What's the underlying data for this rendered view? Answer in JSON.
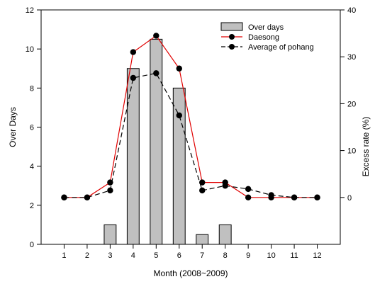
{
  "chart_data": {
    "type": "bar",
    "categories": [
      "1",
      "2",
      "3",
      "4",
      "5",
      "6",
      "7",
      "8",
      "9",
      "10",
      "11",
      "12"
    ],
    "xlabel": "Month (2008~2009)",
    "ylabel_left": "Over Days",
    "ylabel_right": "Excess rate (%)",
    "ylim_left": [
      0,
      12
    ],
    "ylim_right": [
      -10,
      40
    ],
    "yticks_left": [
      0,
      2,
      4,
      6,
      8,
      10,
      12
    ],
    "yticks_right": [
      0,
      10,
      20,
      30,
      40
    ],
    "grid": false,
    "legend_position": "top-right",
    "series": [
      {
        "name": "Over days",
        "type": "bar",
        "axis": "left",
        "color": "#c0c0c0",
        "values": [
          0,
          0,
          1,
          9,
          10.5,
          8,
          0.5,
          1,
          0,
          0,
          0,
          0
        ]
      },
      {
        "name": "Daesong",
        "type": "line",
        "axis": "right",
        "color": "#e00000",
        "dash": "solid",
        "values": [
          0,
          0,
          3.2,
          31,
          34.5,
          27.5,
          3.2,
          3.2,
          0,
          0,
          0,
          0
        ]
      },
      {
        "name": "Average of pohang",
        "type": "line",
        "axis": "right",
        "color": "#000000",
        "dash": "dashed",
        "values": [
          0,
          0,
          1.5,
          25.5,
          26.5,
          17.5,
          1.5,
          2.5,
          1.8,
          0.5,
          0,
          0
        ]
      }
    ]
  }
}
